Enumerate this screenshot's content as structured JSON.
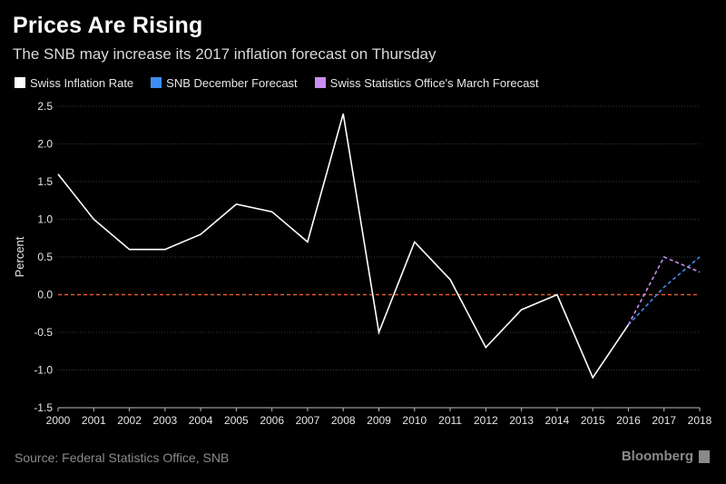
{
  "header": {
    "title": "Prices Are Rising",
    "subtitle": "The SNB may increase its 2017 inflation forecast on Thursday"
  },
  "legend": [
    {
      "label": "Swiss Inflation Rate",
      "color": "#ffffff"
    },
    {
      "label": "SNB December Forecast",
      "color": "#3d8ef0"
    },
    {
      "label": "Swiss Statistics Office's March Forecast",
      "color": "#c98ff0"
    }
  ],
  "footer": {
    "source": "Source: Federal Statistics Office, SNB",
    "brand": "Bloomberg"
  },
  "chart_data": {
    "type": "line",
    "title": "Prices Are Rising",
    "subtitle": "The SNB may increase its 2017 inflation forecast on Thursday",
    "xlabel": "",
    "ylabel": "Percent",
    "xlim": [
      2000,
      2018
    ],
    "ylim": [
      -1.5,
      2.5
    ],
    "x_ticks": [
      "2000",
      "2001",
      "2002",
      "2003",
      "2004",
      "2005",
      "2006",
      "2007",
      "2008",
      "2009",
      "2010",
      "2011",
      "2012",
      "2013",
      "2014",
      "2015",
      "2016",
      "2017",
      "2018"
    ],
    "y_ticks": [
      "-1.5",
      "-1.0",
      "-0.5",
      "0.0",
      "0.5",
      "1.0",
      "1.5",
      "2.0",
      "2.5"
    ],
    "reference_line": {
      "y": 0.0,
      "color": "#e2592b",
      "style": "dashed"
    },
    "series": [
      {
        "name": "Swiss Inflation Rate",
        "color": "#ffffff",
        "style": "solid",
        "x": [
          2000,
          2001,
          2002,
          2003,
          2004,
          2005,
          2006,
          2007,
          2008,
          2009,
          2010,
          2011,
          2012,
          2013,
          2014,
          2015,
          2016
        ],
        "values": [
          1.6,
          1.0,
          0.6,
          0.6,
          0.8,
          1.2,
          1.1,
          0.7,
          2.4,
          -0.5,
          0.7,
          0.2,
          -0.7,
          -0.2,
          0.0,
          -1.1,
          -0.4
        ]
      },
      {
        "name": "SNB December Forecast",
        "color": "#3d8ef0",
        "style": "dashed",
        "x": [
          2016,
          2017,
          2018
        ],
        "values": [
          -0.4,
          0.1,
          0.5
        ]
      },
      {
        "name": "Swiss Statistics Office's March Forecast",
        "color": "#c98ff0",
        "style": "dashed",
        "x": [
          2016,
          2017,
          2018
        ],
        "values": [
          -0.4,
          0.5,
          0.3
        ]
      }
    ],
    "grid": true,
    "legend_position": "top-left"
  }
}
